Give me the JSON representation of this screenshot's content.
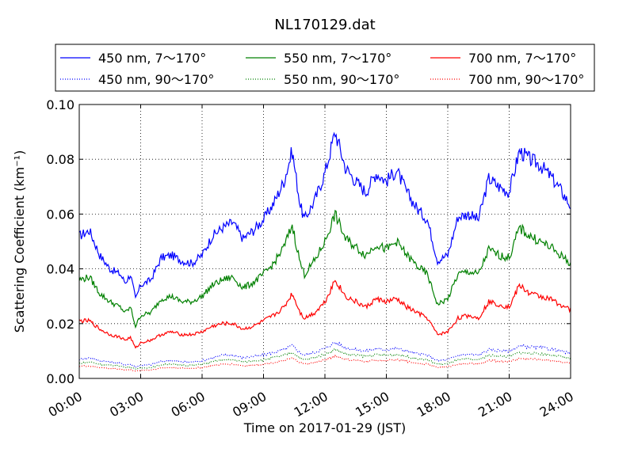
{
  "chart_data": {
    "type": "line",
    "title": "NL170129.dat",
    "xlabel": "Time on 2017-01-29 (JST)",
    "ylabel": "Scattering Coefficient (km⁻¹)",
    "xlim": [
      0,
      24
    ],
    "ylim": [
      0,
      0.1
    ],
    "xticks": [
      0,
      3,
      6,
      9,
      12,
      15,
      18,
      21,
      24
    ],
    "xtick_labels": [
      "00:00",
      "03:00",
      "06:00",
      "09:00",
      "12:00",
      "15:00",
      "18:00",
      "21:00",
      "24:00"
    ],
    "yticks": [
      0,
      0.02,
      0.04,
      0.06,
      0.08,
      0.1
    ],
    "ytick_labels": [
      "0.00",
      "0.02",
      "0.04",
      "0.06",
      "0.08",
      "0.10"
    ],
    "grid": true,
    "legend_position": "top",
    "x": [
      0,
      0.5,
      1,
      1.5,
      2,
      2.25,
      2.5,
      2.75,
      3,
      3.5,
      4,
      4.5,
      5,
      5.5,
      6,
      6.5,
      7,
      7.5,
      8,
      8.5,
      9,
      9.5,
      10,
      10.4,
      10.8,
      11,
      11.5,
      12,
      12.5,
      13,
      13.5,
      14,
      14.5,
      15,
      15.5,
      16,
      16.5,
      17,
      17.5,
      18,
      18.5,
      19,
      19.5,
      20,
      20.5,
      21,
      21.5,
      22,
      22.5,
      23,
      23.5,
      24
    ],
    "series": [
      {
        "name": "450 nm, 7～170°",
        "color": "#0000ff",
        "style": "solid",
        "values": [
          0.052,
          0.054,
          0.045,
          0.04,
          0.038,
          0.035,
          0.038,
          0.029,
          0.034,
          0.036,
          0.044,
          0.045,
          0.043,
          0.042,
          0.045,
          0.052,
          0.055,
          0.057,
          0.051,
          0.054,
          0.058,
          0.064,
          0.072,
          0.083,
          0.063,
          0.058,
          0.065,
          0.075,
          0.09,
          0.077,
          0.072,
          0.068,
          0.075,
          0.072,
          0.076,
          0.068,
          0.062,
          0.058,
          0.043,
          0.045,
          0.059,
          0.06,
          0.058,
          0.073,
          0.07,
          0.068,
          0.083,
          0.08,
          0.078,
          0.074,
          0.069,
          0.063
        ]
      },
      {
        "name": "450 nm, 90～170°",
        "color": "#0000ff",
        "style": "dotted",
        "values": [
          0.007,
          0.0075,
          0.0065,
          0.006,
          0.0055,
          0.005,
          0.0052,
          0.0042,
          0.0048,
          0.005,
          0.0062,
          0.0065,
          0.006,
          0.006,
          0.0065,
          0.0075,
          0.0085,
          0.0085,
          0.0075,
          0.008,
          0.0085,
          0.0095,
          0.0105,
          0.012,
          0.0092,
          0.0085,
          0.0095,
          0.011,
          0.0132,
          0.0112,
          0.0105,
          0.01,
          0.0108,
          0.0105,
          0.011,
          0.01,
          0.009,
          0.0085,
          0.0065,
          0.0068,
          0.0085,
          0.0088,
          0.0085,
          0.0105,
          0.0102,
          0.01,
          0.0118,
          0.0115,
          0.0112,
          0.0108,
          0.01,
          0.009
        ]
      },
      {
        "name": "550 nm, 7～170°",
        "color": "#008000",
        "style": "solid",
        "values": [
          0.036,
          0.037,
          0.031,
          0.028,
          0.026,
          0.024,
          0.026,
          0.019,
          0.023,
          0.024,
          0.029,
          0.03,
          0.028,
          0.028,
          0.03,
          0.034,
          0.036,
          0.037,
          0.033,
          0.035,
          0.038,
          0.042,
          0.048,
          0.056,
          0.042,
          0.038,
          0.043,
          0.05,
          0.06,
          0.051,
          0.048,
          0.045,
          0.049,
          0.047,
          0.05,
          0.045,
          0.041,
          0.038,
          0.027,
          0.029,
          0.038,
          0.039,
          0.038,
          0.047,
          0.045,
          0.044,
          0.055,
          0.052,
          0.05,
          0.048,
          0.045,
          0.042
        ]
      },
      {
        "name": "550 nm, 90～170°",
        "color": "#008000",
        "style": "dotted",
        "values": [
          0.0055,
          0.006,
          0.0052,
          0.0048,
          0.0045,
          0.004,
          0.0042,
          0.0034,
          0.0038,
          0.004,
          0.005,
          0.0052,
          0.0048,
          0.0048,
          0.0052,
          0.006,
          0.0068,
          0.0068,
          0.006,
          0.0064,
          0.0068,
          0.0076,
          0.0084,
          0.0096,
          0.0074,
          0.0068,
          0.0076,
          0.0088,
          0.0106,
          0.009,
          0.0084,
          0.008,
          0.0086,
          0.0084,
          0.0088,
          0.008,
          0.0072,
          0.0068,
          0.0052,
          0.0054,
          0.0068,
          0.007,
          0.0068,
          0.0084,
          0.0082,
          0.008,
          0.0094,
          0.0092,
          0.009,
          0.0086,
          0.008,
          0.0072
        ]
      },
      {
        "name": "700 nm, 7～170°",
        "color": "#ff0000",
        "style": "solid",
        "values": [
          0.021,
          0.021,
          0.018,
          0.016,
          0.015,
          0.014,
          0.015,
          0.011,
          0.013,
          0.014,
          0.016,
          0.017,
          0.016,
          0.016,
          0.017,
          0.019,
          0.02,
          0.02,
          0.018,
          0.019,
          0.021,
          0.023,
          0.026,
          0.031,
          0.024,
          0.022,
          0.024,
          0.028,
          0.036,
          0.03,
          0.028,
          0.026,
          0.029,
          0.028,
          0.029,
          0.026,
          0.024,
          0.022,
          0.016,
          0.017,
          0.022,
          0.023,
          0.022,
          0.028,
          0.027,
          0.026,
          0.034,
          0.031,
          0.03,
          0.029,
          0.027,
          0.025
        ]
      },
      {
        "name": "700 nm, 90～170°",
        "color": "#ff0000",
        "style": "dotted",
        "values": [
          0.0045,
          0.0045,
          0.004,
          0.0036,
          0.0034,
          0.003,
          0.0032,
          0.0026,
          0.003,
          0.0031,
          0.0038,
          0.004,
          0.0037,
          0.0037,
          0.004,
          0.0046,
          0.0052,
          0.0052,
          0.0046,
          0.0049,
          0.0052,
          0.0058,
          0.0064,
          0.0074,
          0.0057,
          0.0052,
          0.0058,
          0.0068,
          0.0082,
          0.007,
          0.0065,
          0.0062,
          0.0066,
          0.0065,
          0.0068,
          0.0062,
          0.0056,
          0.0052,
          0.004,
          0.0042,
          0.0052,
          0.0054,
          0.0052,
          0.0065,
          0.0063,
          0.0062,
          0.0073,
          0.0071,
          0.0069,
          0.0066,
          0.0062,
          0.0055
        ]
      }
    ]
  }
}
